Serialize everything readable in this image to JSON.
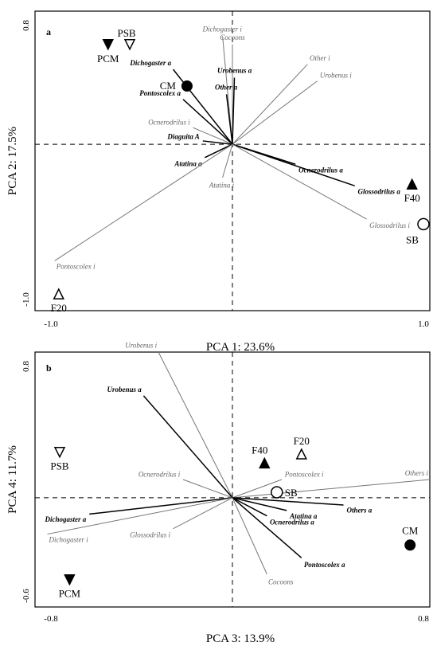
{
  "chart_data": [
    {
      "type": "scatter",
      "panel_label": "a",
      "xlabel": "PCA 1: 23.6%",
      "ylabel": "PCA 2: 17.5%",
      "xlim": [
        -1.0,
        1.0
      ],
      "ylim": [
        -1.0,
        0.8
      ],
      "x_tick_labels": [
        "-1.0",
        "1.0"
      ],
      "y_tick_labels": [
        "0.8",
        "-1.0"
      ],
      "vectors": [
        {
          "label": "Dichogaster i",
          "x": -0.05,
          "y": 0.65,
          "style": "light"
        },
        {
          "label": "Cocoons",
          "x": 0.0,
          "y": 0.6,
          "style": "light"
        },
        {
          "label": "Other i",
          "x": 0.38,
          "y": 0.48,
          "style": "light"
        },
        {
          "label": "Urobenus i",
          "x": 0.43,
          "y": 0.38,
          "style": "light"
        },
        {
          "label": "Dichogaster a",
          "x": -0.3,
          "y": 0.45,
          "style": "bold"
        },
        {
          "label": "Urobenus a",
          "x": 0.01,
          "y": 0.4,
          "style": "bold"
        },
        {
          "label": "Other a",
          "x": -0.03,
          "y": 0.3,
          "style": "bold"
        },
        {
          "label": "Pontoscolex a",
          "x": -0.25,
          "y": 0.27,
          "style": "bold"
        },
        {
          "label": "Ocnerodrilus i",
          "x": -0.2,
          "y": 0.1,
          "style": "light"
        },
        {
          "label": "Diaguita A",
          "x": -0.15,
          "y": 0.02,
          "style": "bold"
        },
        {
          "label": "Atatina a",
          "x": -0.14,
          "y": -0.08,
          "style": "bold"
        },
        {
          "label": "Atatina i",
          "x": -0.05,
          "y": -0.2,
          "style": "light"
        },
        {
          "label": "Ocnerodrilus a",
          "x": 0.32,
          "y": -0.12,
          "style": "bold"
        },
        {
          "label": "Glossodrilus a",
          "x": 0.62,
          "y": -0.25,
          "style": "bold"
        },
        {
          "label": "Glossodrilus i",
          "x": 0.68,
          "y": -0.45,
          "style": "light"
        },
        {
          "label": "Pontoscolex i",
          "x": -0.9,
          "y": -0.7,
          "style": "light"
        }
      ],
      "samples": [
        {
          "label": "PSB",
          "x": -0.52,
          "y": 0.6,
          "marker": "open-down-triangle"
        },
        {
          "label": "PCM",
          "x": -0.63,
          "y": 0.6,
          "marker": "filled-down-triangle"
        },
        {
          "label": "CM",
          "x": -0.23,
          "y": 0.35,
          "marker": "filled-circle"
        },
        {
          "label": "F40",
          "x": 0.91,
          "y": -0.24,
          "marker": "filled-up-triangle"
        },
        {
          "label": "SB",
          "x": 1.0,
          "y": -0.48,
          "marker": "open-circle"
        },
        {
          "label": "F20",
          "x": -0.88,
          "y": -0.9,
          "marker": "open-up-triangle"
        }
      ]
    },
    {
      "type": "scatter",
      "panel_label": "b",
      "xlabel": "PCA 3: 13.9%",
      "ylabel": "PCA 4: 11.7%",
      "xlim": [
        -0.8,
        0.8
      ],
      "ylim": [
        -0.6,
        0.8
      ],
      "x_tick_labels": [
        "-0.8",
        "0.8"
      ],
      "y_tick_labels": [
        "0.8",
        "-0.6"
      ],
      "vectors": [
        {
          "label": "Urobenus i",
          "x": -0.3,
          "y": 0.8,
          "style": "light"
        },
        {
          "label": "Urobenus a",
          "x": -0.36,
          "y": 0.56,
          "style": "bold"
        },
        {
          "label": "Ocnerodrilus i",
          "x": -0.2,
          "y": 0.1,
          "style": "light"
        },
        {
          "label": "Pontoscolex i",
          "x": 0.2,
          "y": 0.1,
          "style": "light"
        },
        {
          "label": "Others i",
          "x": 0.8,
          "y": 0.1,
          "style": "light"
        },
        {
          "label": "Others a",
          "x": 0.45,
          "y": -0.04,
          "style": "bold"
        },
        {
          "label": "Atatina a",
          "x": 0.22,
          "y": -0.07,
          "style": "bold"
        },
        {
          "label": "Ocnerodrilus a",
          "x": 0.14,
          "y": -0.1,
          "style": "bold"
        },
        {
          "label": "Dichogaster a",
          "x": -0.58,
          "y": -0.09,
          "style": "bold"
        },
        {
          "label": "Glossodrilus i",
          "x": -0.24,
          "y": -0.17,
          "style": "light"
        },
        {
          "label": "Dichogaster i",
          "x": -0.75,
          "y": -0.2,
          "style": "light"
        },
        {
          "label": "Pontoscolex a",
          "x": 0.28,
          "y": -0.33,
          "style": "bold"
        },
        {
          "label": "Cocoons",
          "x": 0.14,
          "y": -0.42,
          "style": "light"
        }
      ],
      "samples": [
        {
          "label": "PSB",
          "x": -0.7,
          "y": 0.25,
          "marker": "open-down-triangle"
        },
        {
          "label": "F40",
          "x": 0.13,
          "y": 0.19,
          "marker": "filled-up-triangle"
        },
        {
          "label": "F20",
          "x": 0.28,
          "y": 0.24,
          "marker": "open-up-triangle"
        },
        {
          "label": "SB",
          "x": 0.18,
          "y": 0.03,
          "marker": "open-circle"
        },
        {
          "label": "CM",
          "x": 0.72,
          "y": -0.26,
          "marker": "filled-circle"
        },
        {
          "label": "PCM",
          "x": -0.66,
          "y": -0.45,
          "marker": "filled-down-triangle"
        }
      ]
    }
  ]
}
